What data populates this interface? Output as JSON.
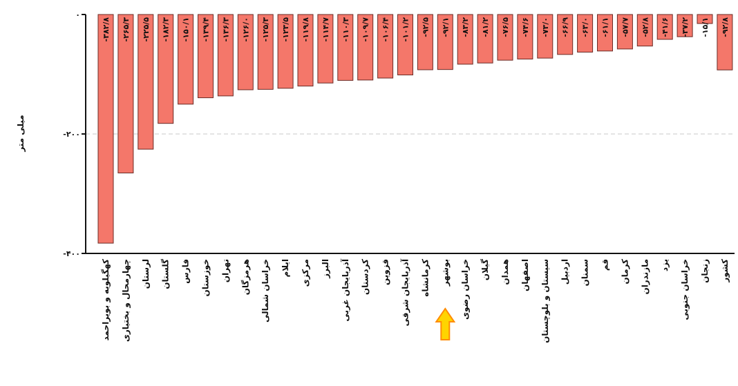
{
  "chart_data": {
    "type": "bar",
    "orientation": "vertical",
    "ylabel": "میلی متر",
    "ylim": [
      -400,
      0
    ],
    "yticks": [
      0,
      -200,
      -400
    ],
    "ytick_labels": [
      "۰",
      "-۲۰۰",
      "-۴۰۰"
    ],
    "grid": "horizontal dashed",
    "bar_color": "#f4776a",
    "highlight_color": "#ffd400",
    "highlight_category": "بوشهر",
    "categories": [
      "کهگیلویه و بویراحمد",
      "چهارمحال و بختیاری",
      "لرستان",
      "گلستان",
      "فارس",
      "خوزستان",
      "تهران",
      "هرمزگان",
      "خراسان شمالی",
      "ایلام",
      "مرکزی",
      "البرز",
      "آذربایجان غربی",
      "کردستان",
      "قزوین",
      "آذربایجان شرقی",
      "کرمانشاه",
      "بوشهر",
      "خراسان رضوی",
      "گیلان",
      "همدان",
      "اصفهان",
      "سیستان و بلوچستان",
      "اردبیل",
      "سمنان",
      "قم",
      "کرمان",
      "مازندران",
      "یزد",
      "خراسان جنوبی",
      "زنجان",
      "کشور"
    ],
    "values": [
      -382.8,
      -265.3,
      -225.5,
      -182.3,
      -150.1,
      -139.4,
      -136.3,
      -126.0,
      -125.3,
      -123.5,
      -119.8,
      -114.7,
      -110.3,
      -109.7,
      -106.4,
      -101.2,
      -92.5,
      -92.1,
      -83.2,
      -81.2,
      -76.5,
      -74.6,
      -73.0,
      -66.9,
      -63.0,
      -61.1,
      -57.7,
      -52.8,
      -41.6,
      -37.2,
      -15.1,
      -92.8
    ],
    "value_labels": [
      "-۳۸۲/۸",
      "-۲۶۵/۳",
      "-۲۲۵/۵",
      "-۱۸۲/۳",
      "-۱۵۰/۱",
      "-۱۳۹/۴",
      "-۱۳۶/۳",
      "-۱۲۶/۰",
      "-۱۲۵/۳",
      "-۱۲۳/۵",
      "-۱۱۹/۸",
      "-۱۱۴/۷",
      "-۱۱۰/۳",
      "-۱۰۹/۷",
      "-۱۰۶/۴",
      "-۱۰۱/۲",
      "-۹۲/۵",
      "-۹۲/۱",
      "-۸۳/۲",
      "-۸۱/۲",
      "-۷۶/۵",
      "-۷۴/۶",
      "-۷۳/۰",
      "-۶۶/۹",
      "-۶۳/۰",
      "-۶۱/۱",
      "-۵۷/۷",
      "-۵۲/۸",
      "-۴۱/۶",
      "-۳۷/۲",
      "-۱۵/۱",
      "-۹۲/۸"
    ]
  }
}
